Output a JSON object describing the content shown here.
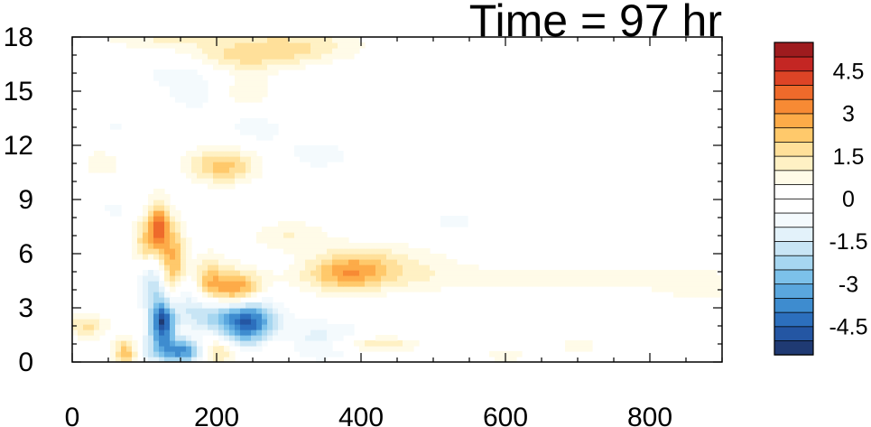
{
  "chart_data": {
    "type": "heatmap",
    "title": "Time = 97 hr",
    "xlabel": "",
    "ylabel": "",
    "xlim": [
      0,
      900
    ],
    "ylim": [
      0,
      18
    ],
    "x_ticks": [
      "0",
      "200",
      "400",
      "600",
      "800"
    ],
    "x_tick_values": [
      0,
      200,
      400,
      600,
      800
    ],
    "y_ticks": [
      "0",
      "3",
      "6",
      "9",
      "12",
      "15",
      "18"
    ],
    "y_tick_values": [
      0,
      3,
      6,
      9,
      12,
      15,
      18
    ],
    "colorbar": {
      "min": -5.5,
      "max": 5.5,
      "step": 0.5,
      "labels": [
        "4.5",
        "3",
        "1.5",
        "0",
        "-1.5",
        "-3",
        "-4.5"
      ],
      "label_values": [
        4.5,
        3,
        1.5,
        0,
        -1.5,
        -3,
        -4.5
      ],
      "colors": [
        "#1f3a73",
        "#2456a3",
        "#2c6fbd",
        "#3e8ccf",
        "#5aa7de",
        "#7cc1ea",
        "#a6d6f0",
        "#c8e5f5",
        "#e3f2fa",
        "#f4fafd",
        "#ffffff",
        "#ffffff",
        "#fffbe8",
        "#fff1c4",
        "#ffe09a",
        "#ffc96b",
        "#fdab48",
        "#f78a34",
        "#ee6a2b",
        "#dd4426",
        "#c42623",
        "#9e1b1e"
      ]
    },
    "features": [
      {
        "x": 120,
        "y": 18,
        "sx": 60,
        "sy": 0.5,
        "v": 1.0
      },
      {
        "x": 300,
        "y": 17.5,
        "sx": 70,
        "sy": 0.7,
        "v": 1.6
      },
      {
        "x": 230,
        "y": 16.8,
        "sx": 50,
        "sy": 0.6,
        "v": 1.1
      },
      {
        "x": 150,
        "y": 16.0,
        "sx": 40,
        "sy": 0.6,
        "v": -0.8
      },
      {
        "x": 680,
        "y": 16.3,
        "sx": 160,
        "sy": 0.6,
        "v": -0.5
      },
      {
        "x": 240,
        "y": 15.0,
        "sx": 30,
        "sy": 0.6,
        "v": 0.9
      },
      {
        "x": 170,
        "y": 14.8,
        "sx": 25,
        "sy": 0.6,
        "v": -0.9
      },
      {
        "x": 250,
        "y": 13.0,
        "sx": 30,
        "sy": 0.6,
        "v": -0.7
      },
      {
        "x": 340,
        "y": 11.5,
        "sx": 60,
        "sy": 1.0,
        "v": -0.6
      },
      {
        "x": 210,
        "y": 10.9,
        "sx": 35,
        "sy": 0.7,
        "v": 2.3
      },
      {
        "x": 40,
        "y": 11.0,
        "sx": 25,
        "sy": 0.8,
        "v": 0.7
      },
      {
        "x": 60,
        "y": 8.5,
        "sx": 20,
        "sy": 0.6,
        "v": -0.6
      },
      {
        "x": 100,
        "y": 6.5,
        "sx": 12,
        "sy": 1.2,
        "v": 1.8
      },
      {
        "x": 120,
        "y": 7.5,
        "sx": 10,
        "sy": 1.0,
        "v": 3.2
      },
      {
        "x": 110,
        "y": 4.5,
        "sx": 15,
        "sy": 1.0,
        "v": -2.2
      },
      {
        "x": 140,
        "y": 5.5,
        "sx": 14,
        "sy": 1.5,
        "v": 2.8
      },
      {
        "x": 160,
        "y": 4.0,
        "sx": 15,
        "sy": 1.2,
        "v": -1.8
      },
      {
        "x": 185,
        "y": 4.3,
        "sx": 20,
        "sy": 1.1,
        "v": 2.2
      },
      {
        "x": 230,
        "y": 3.8,
        "sx": 25,
        "sy": 0.8,
        "v": 4.0
      },
      {
        "x": 200,
        "y": 2.8,
        "sx": 28,
        "sy": 0.8,
        "v": -2.8
      },
      {
        "x": 245,
        "y": 2.4,
        "sx": 25,
        "sy": 1.0,
        "v": -4.4
      },
      {
        "x": 125,
        "y": 2.2,
        "sx": 12,
        "sy": 0.9,
        "v": -5.0
      },
      {
        "x": 155,
        "y": 0.6,
        "sx": 25,
        "sy": 0.5,
        "v": -4.0
      },
      {
        "x": 195,
        "y": 0.6,
        "sx": 22,
        "sy": 0.6,
        "v": 2.5
      },
      {
        "x": 75,
        "y": 0.5,
        "sx": 12,
        "sy": 0.6,
        "v": 2.5
      },
      {
        "x": 100,
        "y": 0.6,
        "sx": 12,
        "sy": 0.7,
        "v": -1.0
      },
      {
        "x": 20,
        "y": 2.0,
        "sx": 20,
        "sy": 0.5,
        "v": 1.6
      },
      {
        "x": 330,
        "y": 1.2,
        "sx": 60,
        "sy": 0.8,
        "v": -1.3
      },
      {
        "x": 420,
        "y": 1.0,
        "sx": 40,
        "sy": 0.3,
        "v": 1.8
      },
      {
        "x": 380,
        "y": 5.0,
        "sx": 40,
        "sy": 0.8,
        "v": 2.2
      },
      {
        "x": 300,
        "y": 7.0,
        "sx": 40,
        "sy": 0.6,
        "v": 1.0
      },
      {
        "x": 440,
        "y": 5.5,
        "sx": 60,
        "sy": 0.8,
        "v": 1.0
      },
      {
        "x": 650,
        "y": 4.6,
        "sx": 260,
        "sy": 0.6,
        "v": 0.7
      },
      {
        "x": 870,
        "y": 4.0,
        "sx": 40,
        "sy": 0.6,
        "v": 0.5
      },
      {
        "x": 530,
        "y": 7.8,
        "sx": 40,
        "sy": 0.5,
        "v": -0.6
      },
      {
        "x": 280,
        "y": 1.0,
        "sx": 25,
        "sy": 0.6,
        "v": 1.3
      },
      {
        "x": 600,
        "y": 0.4,
        "sx": 20,
        "sy": 0.3,
        "v": 1.0
      },
      {
        "x": 700,
        "y": 0.9,
        "sx": 20,
        "sy": 0.3,
        "v": 0.8
      },
      {
        "x": 60,
        "y": 13.0,
        "sx": 20,
        "sy": 0.6,
        "v": -0.6
      }
    ]
  }
}
